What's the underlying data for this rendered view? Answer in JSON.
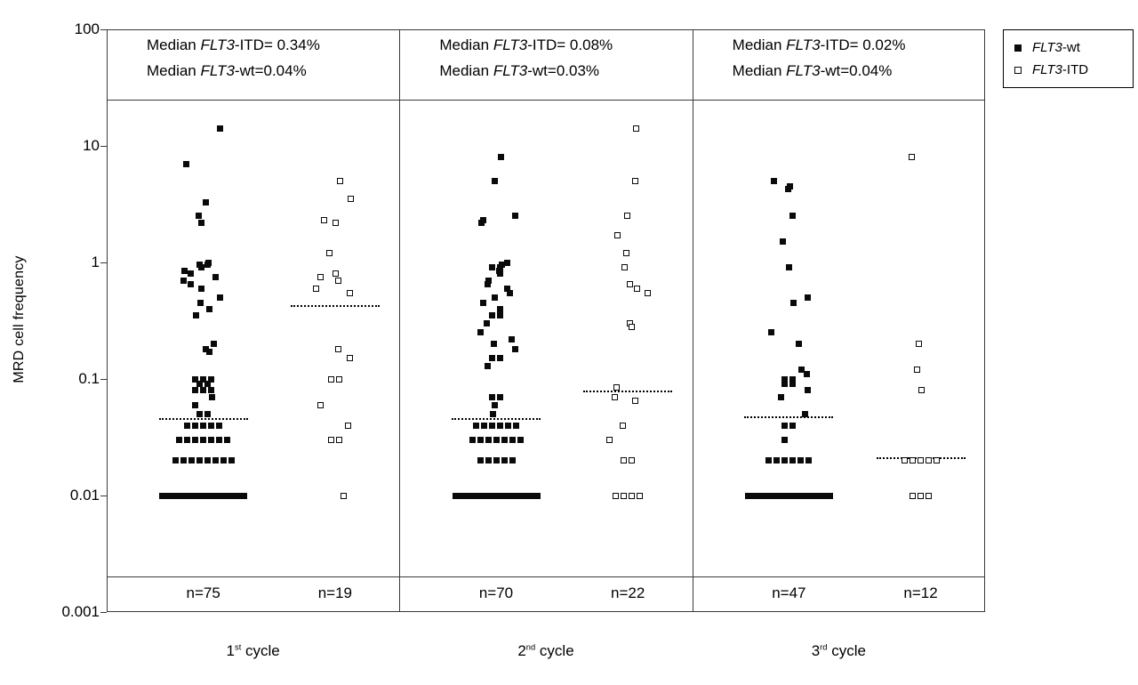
{
  "figure": {
    "background": "#ffffff",
    "marker_color": "#000000"
  },
  "chart_data": {
    "type": "scatter",
    "title": "",
    "xlabel": "",
    "ylabel": "MRD cell frequency",
    "yscale": "log",
    "ylim": [
      0.001,
      100
    ],
    "ytick_values": [
      100,
      10,
      1,
      0.1,
      0.01,
      0.001
    ],
    "ytick_labels": [
      "100",
      "10",
      "1",
      "0.1",
      "0.01",
      "0.001"
    ],
    "grid": false,
    "legend_position": "top-right-outside",
    "legend": [
      {
        "label": "FLT3-wt",
        "marker": "filled-square"
      },
      {
        "label": "FLT3-ITD",
        "marker": "open-square"
      }
    ],
    "panels": [
      {
        "cycle_label": "1st cycle",
        "annotations": [
          "Median FLT3-ITD= 0.34%",
          "Median FLT3-wt=0.04%"
        ],
        "groups": [
          {
            "name": "FLT3-wt",
            "marker": "filled-square",
            "n_label": "n=75",
            "median_line": 0.045,
            "values": [
              14,
              7,
              3.3,
              2.5,
              2.2,
              1,
              0.95,
              0.95,
              0.9,
              0.85,
              0.8,
              0.75,
              0.7,
              0.65,
              0.6,
              0.5,
              0.45,
              0.4,
              0.35,
              0.2,
              0.18,
              0.17,
              0.1,
              0.1,
              0.1,
              0.09,
              0.09,
              0.08,
              0.08,
              0.08,
              0.07,
              0.06,
              0.05,
              0.05,
              0.04,
              0.04,
              0.04,
              0.04,
              0.04,
              0.03,
              0.03,
              0.03,
              0.03,
              0.03,
              0.03,
              0.03,
              0.02,
              0.02,
              0.02,
              0.02,
              0.02,
              0.02,
              0.02,
              0.02,
              0.01,
              0.01,
              0.01,
              0.01,
              0.01,
              0.01,
              0.01,
              0.01,
              0.01,
              0.01,
              0.01,
              0.01,
              0.01,
              0.01,
              0.01,
              0.01,
              0.01,
              0.01,
              0.01,
              0.01,
              0.01
            ]
          },
          {
            "name": "FLT3-ITD",
            "marker": "open-square",
            "n_label": "n=19",
            "median_line": 0.42,
            "values": [
              5,
              3.5,
              2.3,
              2.2,
              1.2,
              0.8,
              0.75,
              0.7,
              0.6,
              0.55,
              0.18,
              0.15,
              0.1,
              0.1,
              0.06,
              0.04,
              0.03,
              0.03,
              0.01
            ]
          }
        ]
      },
      {
        "cycle_label": "2nd cycle",
        "annotations": [
          "Median FLT3-ITD= 0.08%",
          "Median FLT3-wt=0.03%"
        ],
        "groups": [
          {
            "name": "FLT3-wt",
            "marker": "filled-square",
            "n_label": "n=70",
            "median_line": 0.045,
            "values": [
              8,
              5,
              2.5,
              2.3,
              2.2,
              1,
              0.95,
              0.9,
              0.9,
              0.85,
              0.8,
              0.7,
              0.65,
              0.6,
              0.55,
              0.5,
              0.45,
              0.4,
              0.35,
              0.35,
              0.3,
              0.25,
              0.22,
              0.2,
              0.18,
              0.15,
              0.15,
              0.13,
              0.07,
              0.07,
              0.06,
              0.05,
              0.04,
              0.04,
              0.04,
              0.04,
              0.04,
              0.04,
              0.03,
              0.03,
              0.03,
              0.03,
              0.03,
              0.03,
              0.03,
              0.02,
              0.02,
              0.02,
              0.02,
              0.02,
              0.01,
              0.01,
              0.01,
              0.01,
              0.01,
              0.01,
              0.01,
              0.01,
              0.01,
              0.01,
              0.01,
              0.01,
              0.01,
              0.01,
              0.01,
              0.01,
              0.01,
              0.01,
              0.01,
              0.01
            ]
          },
          {
            "name": "FLT3-ITD",
            "marker": "open-square",
            "n_label": "n=22",
            "median_line": 0.078,
            "values": [
              14,
              5,
              2.5,
              1.7,
              1.2,
              0.9,
              0.65,
              0.6,
              0.55,
              0.3,
              0.28,
              0.085,
              0.07,
              0.065,
              0.04,
              0.03,
              0.02,
              0.02,
              0.01,
              0.01,
              0.01,
              0.01
            ]
          }
        ]
      },
      {
        "cycle_label": "3rd cycle",
        "annotations": [
          "Median FLT3-ITD= 0.02%",
          "Median FLT3-wt=0.04%"
        ],
        "groups": [
          {
            "name": "FLT3-wt",
            "marker": "filled-square",
            "n_label": "n=47",
            "median_line": 0.047,
            "values": [
              5,
              4.5,
              4.3,
              2.5,
              1.5,
              0.9,
              0.5,
              0.45,
              0.25,
              0.2,
              0.12,
              0.11,
              0.1,
              0.1,
              0.09,
              0.09,
              0.08,
              0.07,
              0.05,
              0.04,
              0.04,
              0.03,
              0.02,
              0.02,
              0.02,
              0.02,
              0.02,
              0.02,
              0.01,
              0.01,
              0.01,
              0.01,
              0.01,
              0.01,
              0.01,
              0.01,
              0.01,
              0.01,
              0.01,
              0.01,
              0.01,
              0.01,
              0.01,
              0.01,
              0.01,
              0.01,
              0.01
            ]
          },
          {
            "name": "FLT3-ITD",
            "marker": "open-square",
            "n_label": "n=12",
            "median_line": 0.021,
            "values": [
              8,
              0.2,
              0.12,
              0.08,
              0.02,
              0.02,
              0.02,
              0.02,
              0.02,
              0.01,
              0.01,
              0.01
            ]
          }
        ]
      }
    ]
  }
}
